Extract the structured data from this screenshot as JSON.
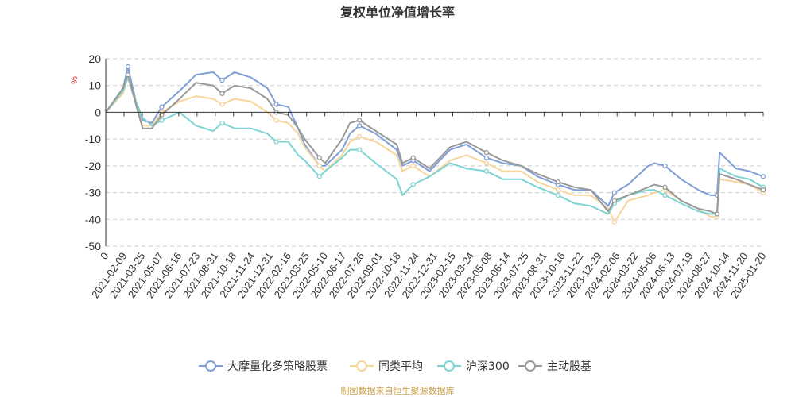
{
  "chart_data": {
    "type": "line",
    "title": "复权单位净值增长率",
    "unit_label": "%",
    "ylim": [
      -50,
      20
    ],
    "y_ticks": [
      20,
      10,
      0,
      -10,
      -20,
      -30,
      -40,
      -50
    ],
    "x_start": "2021-01-01",
    "x_end": "2025-01-20",
    "x_ticks": [
      "0",
      "2021-02-09",
      "2021-03-25",
      "2021-05-07",
      "2021-06-16",
      "2021-07-23",
      "2021-08-31",
      "2021-10-18",
      "2021-11-24",
      "2021-12-31",
      "2022-02-16",
      "2022-03-25",
      "2022-05-10",
      "2022-06-17",
      "2022-07-26",
      "2022-09-01",
      "2022-10-18",
      "2022-11-24",
      "2022-12-31",
      "2023-02-15",
      "2023-03-24",
      "2023-05-08",
      "2023-06-14",
      "2023-07-25",
      "2023-08-31",
      "2023-10-16",
      "2023-11-22",
      "2023-12-29",
      "2024-02-06",
      "2024-03-22",
      "2024-05-06",
      "2024-06-13",
      "2024-07-19",
      "2024-08-27",
      "2024-10-14",
      "2024-11-20",
      "2025-01-20"
    ],
    "grid": true,
    "legend_position": "bottom",
    "series": [
      {
        "name": "大摩量化多策略股票",
        "color": "#7f9fd6",
        "x": [
          "2021-01-01",
          "2021-02-09",
          "2021-02-20",
          "2021-03-10",
          "2021-03-25",
          "2021-04-15",
          "2021-05-07",
          "2021-06-16",
          "2021-07-23",
          "2021-08-31",
          "2021-09-20",
          "2021-10-18",
          "2021-11-24",
          "2021-12-31",
          "2022-01-20",
          "2022-02-16",
          "2022-03-10",
          "2022-03-25",
          "2022-04-27",
          "2022-05-10",
          "2022-06-17",
          "2022-07-05",
          "2022-07-26",
          "2022-09-01",
          "2022-10-18",
          "2022-10-31",
          "2022-11-24",
          "2022-12-31",
          "2023-02-15",
          "2023-03-24",
          "2023-05-08",
          "2023-06-14",
          "2023-07-25",
          "2023-08-31",
          "2023-10-16",
          "2023-11-22",
          "2023-12-29",
          "2024-02-06",
          "2024-02-20",
          "2024-03-22",
          "2024-05-06",
          "2024-05-20",
          "2024-06-13",
          "2024-07-19",
          "2024-08-27",
          "2024-09-23",
          "2024-10-08",
          "2024-10-14",
          "2024-11-20",
          "2024-12-20",
          "2025-01-20"
        ],
        "y": [
          0,
          9,
          17,
          4,
          -3,
          -4,
          2,
          8,
          14,
          15,
          12,
          15,
          13,
          9,
          3,
          2,
          -6,
          -12,
          -20,
          -20,
          -14,
          -8,
          -5,
          -8,
          -14,
          -20,
          -18,
          -22,
          -14,
          -12,
          -17,
          -19,
          -20,
          -24,
          -27,
          -29,
          -29,
          -35,
          -30,
          -27,
          -20,
          -19,
          -20,
          -25,
          -29,
          -31,
          -31,
          -15,
          -21,
          -22,
          -24
        ]
      },
      {
        "name": "同类平均",
        "color": "#f7d59b",
        "x": [
          "2021-01-01",
          "2021-02-09",
          "2021-02-20",
          "2021-03-10",
          "2021-03-25",
          "2021-04-15",
          "2021-05-07",
          "2021-06-16",
          "2021-07-23",
          "2021-08-31",
          "2021-09-20",
          "2021-10-18",
          "2021-11-24",
          "2021-12-31",
          "2022-01-20",
          "2022-02-16",
          "2022-03-10",
          "2022-03-25",
          "2022-04-27",
          "2022-05-10",
          "2022-06-17",
          "2022-07-05",
          "2022-07-26",
          "2022-09-01",
          "2022-10-18",
          "2022-10-31",
          "2022-11-24",
          "2022-12-31",
          "2023-02-15",
          "2023-03-24",
          "2023-05-08",
          "2023-06-14",
          "2023-07-25",
          "2023-08-31",
          "2023-10-16",
          "2023-11-22",
          "2023-12-29",
          "2024-02-06",
          "2024-02-20",
          "2024-03-22",
          "2024-05-06",
          "2024-05-20",
          "2024-06-13",
          "2024-07-19",
          "2024-08-27",
          "2024-09-23",
          "2024-10-08",
          "2024-10-14",
          "2024-11-20",
          "2024-12-20",
          "2025-01-20"
        ],
        "y": [
          0,
          7,
          13,
          3,
          -5,
          -5,
          0,
          4,
          6,
          5,
          3,
          5,
          4,
          0,
          -3,
          -4,
          -8,
          -13,
          -20,
          -22,
          -16,
          -11,
          -9,
          -11,
          -16,
          -22,
          -20,
          -24,
          -18,
          -16,
          -19,
          -22,
          -22,
          -26,
          -29,
          -31,
          -31,
          -36,
          -41,
          -33,
          -31,
          -30,
          -29,
          -33,
          -36,
          -39,
          -39,
          -25,
          -26,
          -27,
          -30
        ]
      },
      {
        "name": "沪深300",
        "color": "#7ed3d3",
        "x": [
          "2021-01-01",
          "2021-02-09",
          "2021-02-20",
          "2021-03-10",
          "2021-03-25",
          "2021-04-15",
          "2021-05-07",
          "2021-06-16",
          "2021-07-23",
          "2021-08-31",
          "2021-09-20",
          "2021-10-18",
          "2021-11-24",
          "2021-12-31",
          "2022-01-20",
          "2022-02-16",
          "2022-03-10",
          "2022-03-25",
          "2022-04-27",
          "2022-05-10",
          "2022-06-17",
          "2022-07-05",
          "2022-07-26",
          "2022-09-01",
          "2022-10-18",
          "2022-10-31",
          "2022-11-24",
          "2022-12-31",
          "2023-02-15",
          "2023-03-24",
          "2023-05-08",
          "2023-06-14",
          "2023-07-25",
          "2023-08-31",
          "2023-10-16",
          "2023-11-22",
          "2023-12-29",
          "2024-02-06",
          "2024-02-20",
          "2024-03-22",
          "2024-05-06",
          "2024-05-20",
          "2024-06-13",
          "2024-07-19",
          "2024-08-27",
          "2024-09-23",
          "2024-10-08",
          "2024-10-14",
          "2024-11-20",
          "2024-12-20",
          "2025-01-20"
        ],
        "y": [
          0,
          8,
          13,
          4,
          -2,
          -5,
          -3,
          0,
          -5,
          -7,
          -4,
          -6,
          -6,
          -8,
          -11,
          -11,
          -16,
          -18,
          -24,
          -22,
          -17,
          -14,
          -14,
          -19,
          -25,
          -31,
          -27,
          -24,
          -19,
          -21,
          -22,
          -25,
          -25,
          -28,
          -31,
          -34,
          -35,
          -38,
          -34,
          -31,
          -29,
          -29,
          -31,
          -34,
          -37,
          -38,
          -38,
          -21,
          -24,
          -25,
          -28
        ]
      },
      {
        "name": "主动股基",
        "color": "#999999",
        "x": [
          "2021-01-01",
          "2021-02-09",
          "2021-02-20",
          "2021-03-10",
          "2021-03-25",
          "2021-04-15",
          "2021-05-07",
          "2021-06-16",
          "2021-07-23",
          "2021-08-31",
          "2021-09-20",
          "2021-10-18",
          "2021-11-24",
          "2021-12-31",
          "2022-01-20",
          "2022-02-16",
          "2022-03-10",
          "2022-03-25",
          "2022-04-27",
          "2022-05-10",
          "2022-06-17",
          "2022-07-05",
          "2022-07-26",
          "2022-09-01",
          "2022-10-18",
          "2022-10-31",
          "2022-11-24",
          "2022-12-31",
          "2023-02-15",
          "2023-03-24",
          "2023-05-08",
          "2023-06-14",
          "2023-07-25",
          "2023-08-31",
          "2023-10-16",
          "2023-11-22",
          "2023-12-29",
          "2024-02-06",
          "2024-02-20",
          "2024-03-22",
          "2024-05-06",
          "2024-05-20",
          "2024-06-13",
          "2024-07-19",
          "2024-08-27",
          "2024-09-23",
          "2024-10-08",
          "2024-10-14",
          "2024-11-20",
          "2024-12-20",
          "2025-01-20"
        ],
        "y": [
          0,
          9,
          14,
          3,
          -6,
          -6,
          -1,
          5,
          11,
          10,
          7,
          10,
          9,
          5,
          0,
          -1,
          -6,
          -10,
          -17,
          -19,
          -10,
          -4,
          -3,
          -7,
          -12,
          -19,
          -17,
          -21,
          -13,
          -11,
          -15,
          -18,
          -20,
          -23,
          -26,
          -28,
          -29,
          -37,
          -33,
          -31,
          -28,
          -27,
          -28,
          -33,
          -36,
          -37,
          -38,
          -23,
          -25,
          -27,
          -29
        ]
      }
    ]
  },
  "legend": {
    "items": [
      "大摩量化多策略股票",
      "同类平均",
      "沪深300",
      "主动股基"
    ]
  },
  "source_note": "制图数据来自恒生聚源数据库"
}
